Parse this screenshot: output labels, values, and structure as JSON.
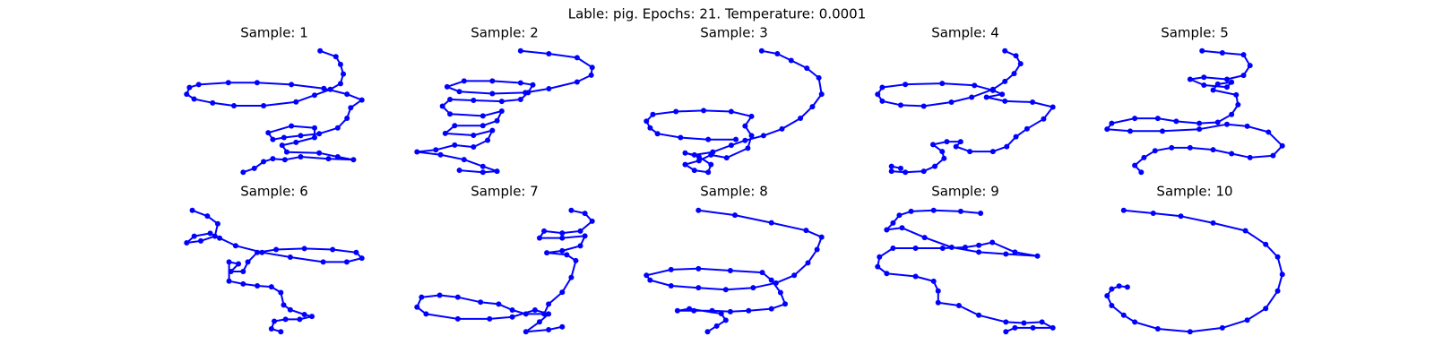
{
  "title": "Lable: pig. Epochs: 21. Temperature: 0.0001",
  "chart_data": [
    {
      "type": "line",
      "title": "Sample: 1",
      "color": "#0000ff",
      "x": [
        351,
        368,
        373,
        376,
        373,
        362,
        345,
        325,
        290,
        258,
        235,
        215,
        207,
        210,
        220,
        252,
        283,
        320,
        355,
        380,
        396,
        384,
        380,
        370,
        350,
        330,
        312,
        300,
        295,
        320,
        345,
        345,
        325,
        310,
        315,
        350,
        370,
        387,
        360,
        330,
        313,
        300,
        290,
        280,
        268
      ],
      "y": [
        138,
        132,
        124,
        114,
        104,
        98,
        92,
        85,
        81,
        81,
        84,
        88,
        93,
        100,
        103,
        105,
        105,
        103,
        99,
        93,
        87,
        79,
        68,
        58,
        52,
        50,
        48,
        46,
        53,
        60,
        58,
        48,
        43,
        40,
        33,
        32,
        28,
        25,
        26,
        28,
        25,
        26,
        23,
        16,
        12
      ]
    },
    {
      "type": "line",
      "title": "Sample: 2",
      "color": "#0000ff",
      "x": [
        570,
        600,
        630,
        646,
        645,
        630,
        600,
        575,
        540,
        505,
        492,
        510,
        540,
        570,
        583,
        578,
        570,
        550,
        520,
        495,
        487,
        495,
        530,
        550,
        545,
        530,
        500,
        490,
        520,
        540,
        535,
        520,
        500,
        480,
        460,
        485,
        510,
        530,
        545,
        530,
        505
      ],
      "y": [
        137,
        134,
        130,
        120,
        112,
        105,
        98,
        94,
        93,
        95,
        100,
        106,
        106,
        104,
        102,
        94,
        87,
        85,
        86,
        87,
        80,
        72,
        70,
        75,
        65,
        60,
        60,
        52,
        50,
        55,
        45,
        38,
        40,
        35,
        33,
        30,
        25,
        18,
        13,
        12,
        14
      ]
    },
    {
      "type": "line",
      "title": "Sample: 3",
      "color": "#0000ff",
      "x": [
        833,
        850,
        865,
        882,
        895,
        898,
        888,
        875,
        855,
        835,
        815,
        800,
        780,
        760,
        750,
        765,
        778,
        775,
        760,
        750,
        765,
        778,
        795,
        818,
        822,
        815,
        822,
        800,
        770,
        740,
        715,
        708,
        712,
        720,
        745,
        775,
        805
      ],
      "y": [
        138,
        135,
        128,
        120,
        110,
        93,
        80,
        68,
        57,
        50,
        45,
        40,
        33,
        30,
        32,
        28,
        20,
        12,
        14,
        20,
        24,
        30,
        27,
        37,
        50,
        60,
        70,
        75,
        76,
        75,
        72,
        65,
        58,
        52,
        48,
        46,
        46
      ]
    },
    {
      "type": "line",
      "title": "Sample: 4",
      "color": "#0000ff",
      "x": [
        1098,
        1110,
        1115,
        1108,
        1098,
        1085,
        1062,
        1040,
        1010,
        985,
        965,
        960,
        965,
        990,
        1030,
        1065,
        1085,
        1095,
        1078,
        1098,
        1128,
        1150,
        1140,
        1122,
        1110,
        1100,
        1085,
        1060,
        1045,
        1050,
        1035,
        1020,
        1030,
        1032,
        1022,
        1010,
        990,
        975,
        975,
        985
      ],
      "y": [
        137,
        132,
        124,
        114,
        106,
        98,
        90,
        85,
        81,
        82,
        86,
        93,
        100,
        103,
        104,
        102,
        97,
        93,
        90,
        86,
        85,
        80,
        68,
        58,
        50,
        40,
        35,
        35,
        40,
        45,
        45,
        42,
        35,
        28,
        20,
        15,
        14,
        15,
        20,
        18
      ]
    },
    {
      "type": "line",
      "title": "Sample: 5",
      "color": "#0000ff",
      "x": [
        1313,
        1335,
        1358,
        1365,
        1358,
        1340,
        1315,
        1300,
        1315,
        1340,
        1345,
        1330,
        1325,
        1350,
        1352,
        1345,
        1330,
        1310,
        1285,
        1265,
        1240,
        1215,
        1210,
        1235,
        1270,
        1310,
        1340,
        1362,
        1385,
        1400,
        1390,
        1365,
        1345,
        1325,
        1300,
        1280,
        1262,
        1250,
        1240,
        1247
      ],
      "y": [
        137,
        135,
        133,
        122,
        112,
        108,
        110,
        108,
        102,
        100,
        105,
        103,
        97,
        92,
        82,
        72,
        64,
        63,
        65,
        68,
        68,
        63,
        57,
        55,
        55,
        57,
        62,
        60,
        54,
        40,
        30,
        28,
        32,
        36,
        38,
        38,
        35,
        28,
        20,
        13
      ]
    },
    {
      "type": "line",
      "title": "Sample: 6",
      "color": "#0000ff",
      "x": [
        216,
        232,
        243,
        240,
        225,
        210,
        218,
        235,
        245,
        262,
        290,
        320,
        355,
        380,
        396,
        390,
        365,
        335,
        305,
        285,
        275,
        270,
        257,
        265,
        255,
        255,
        270,
        285,
        300,
        310,
        313,
        320,
        335,
        343,
        330,
        315,
        303,
        300,
        310
      ],
      "y": [
        139,
        133,
        125,
        112,
        107,
        105,
        112,
        115,
        110,
        102,
        95,
        90,
        85,
        85,
        89,
        95,
        98,
        99,
        98,
        95,
        85,
        75,
        75,
        83,
        85,
        65,
        62,
        60,
        59,
        53,
        40,
        35,
        30,
        28,
        25,
        25,
        23,
        15,
        12
      ]
    },
    {
      "type": "line",
      "title": "Sample: 7",
      "color": "#0000ff",
      "x": [
        625,
        640,
        648,
        635,
        615,
        595,
        590,
        615,
        640,
        635,
        615,
        598,
        620,
        630,
        625,
        615,
        600,
        595,
        575,
        560,
        545,
        525,
        500,
        480,
        460,
        455,
        465,
        500,
        535,
        560,
        585,
        600,
        590,
        575,
        600,
        615
      ],
      "y": [
        138,
        135,
        127,
        117,
        115,
        117,
        110,
        110,
        112,
        102,
        97,
        95,
        93,
        87,
        70,
        55,
        43,
        33,
        33,
        37,
        43,
        45,
        50,
        52,
        50,
        40,
        33,
        28,
        28,
        30,
        37,
        33,
        25,
        15,
        17,
        20
      ]
    },
    {
      "type": "line",
      "title": "Sample: 8",
      "color": "#0000ff",
      "x": [
        765,
        805,
        845,
        883,
        900,
        895,
        885,
        870,
        850,
        825,
        795,
        765,
        735,
        712,
        708,
        735,
        765,
        800,
        835,
        845,
        855,
        860,
        845,
        820,
        800,
        780,
        760,
        742,
        755,
        790,
        795,
        785,
        775
      ],
      "y": [
        138,
        133,
        125,
        117,
        110,
        97,
        83,
        70,
        62,
        57,
        55,
        57,
        59,
        65,
        70,
        76,
        77,
        75,
        73,
        65,
        52,
        40,
        35,
        33,
        32,
        33,
        33,
        33,
        35,
        30,
        23,
        17,
        11
      ]
    },
    {
      "type": "line",
      "title": "Sample: 9",
      "color": "#0000ff",
      "x": [
        1072,
        1050,
        1020,
        995,
        982,
        975,
        968,
        985,
        1010,
        1040,
        1070,
        1100,
        1135,
        1110,
        1085,
        1070,
        1055,
        1030,
        1000,
        975,
        960,
        958,
        968,
        1000,
        1020,
        1025,
        1025,
        1048,
        1070,
        1100,
        1120,
        1140,
        1152,
        1130,
        1110,
        1100
      ],
      "y": [
        135,
        137,
        138,
        137,
        133,
        125,
        118,
        120,
        110,
        100,
        95,
        93,
        91,
        95,
        105,
        102,
        100,
        99,
        99,
        99,
        90,
        80,
        73,
        70,
        65,
        55,
        43,
        40,
        30,
        23,
        22,
        23,
        17,
        17,
        17,
        13
      ]
    },
    {
      "type": "line",
      "title": "Sample: 10",
      "color": "#0000ff",
      "x": [
        1228,
        1260,
        1290,
        1325,
        1360,
        1382,
        1395,
        1400,
        1395,
        1382,
        1362,
        1335,
        1300,
        1265,
        1240,
        1228,
        1215,
        1210,
        1215,
        1223,
        1232
      ],
      "y": [
        138,
        135,
        132,
        125,
        117,
        103,
        90,
        72,
        55,
        37,
        25,
        17,
        13,
        16,
        23,
        30,
        40,
        50,
        57,
        60,
        59
      ]
    }
  ]
}
